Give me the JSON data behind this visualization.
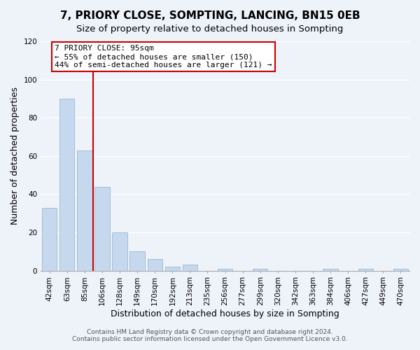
{
  "title": "7, PRIORY CLOSE, SOMPTING, LANCING, BN15 0EB",
  "subtitle": "Size of property relative to detached houses in Sompting",
  "xlabel": "Distribution of detached houses by size in Sompting",
  "ylabel": "Number of detached properties",
  "bar_labels": [
    "42sqm",
    "63sqm",
    "85sqm",
    "106sqm",
    "128sqm",
    "149sqm",
    "170sqm",
    "192sqm",
    "213sqm",
    "235sqm",
    "256sqm",
    "277sqm",
    "299sqm",
    "320sqm",
    "342sqm",
    "363sqm",
    "384sqm",
    "406sqm",
    "427sqm",
    "449sqm",
    "470sqm"
  ],
  "bar_values": [
    33,
    90,
    63,
    44,
    20,
    10,
    6,
    2,
    3,
    0,
    1,
    0,
    1,
    0,
    0,
    0,
    1,
    0,
    1,
    0,
    1
  ],
  "bar_color": "#c5d8ee",
  "bar_edge_color": "#9ab8d8",
  "vline_x_idx": 2.5,
  "vline_color": "#cc0000",
  "annotation_line1": "7 PRIORY CLOSE: 95sqm",
  "annotation_line2": "← 55% of detached houses are smaller (150)",
  "annotation_line3": "44% of semi-detached houses are larger (121) →",
  "annotation_box_color": "white",
  "annotation_box_edge": "#cc0000",
  "ylim": [
    0,
    120
  ],
  "yticks": [
    0,
    20,
    40,
    60,
    80,
    100,
    120
  ],
  "footer1": "Contains HM Land Registry data © Crown copyright and database right 2024.",
  "footer2": "Contains public sector information licensed under the Open Government Licence v3.0.",
  "background_color": "#eef2f9",
  "grid_color": "#ffffff",
  "title_fontsize": 11,
  "subtitle_fontsize": 9.5,
  "axis_label_fontsize": 9,
  "tick_fontsize": 7.5,
  "annotation_fontsize": 8,
  "footer_fontsize": 6.5
}
